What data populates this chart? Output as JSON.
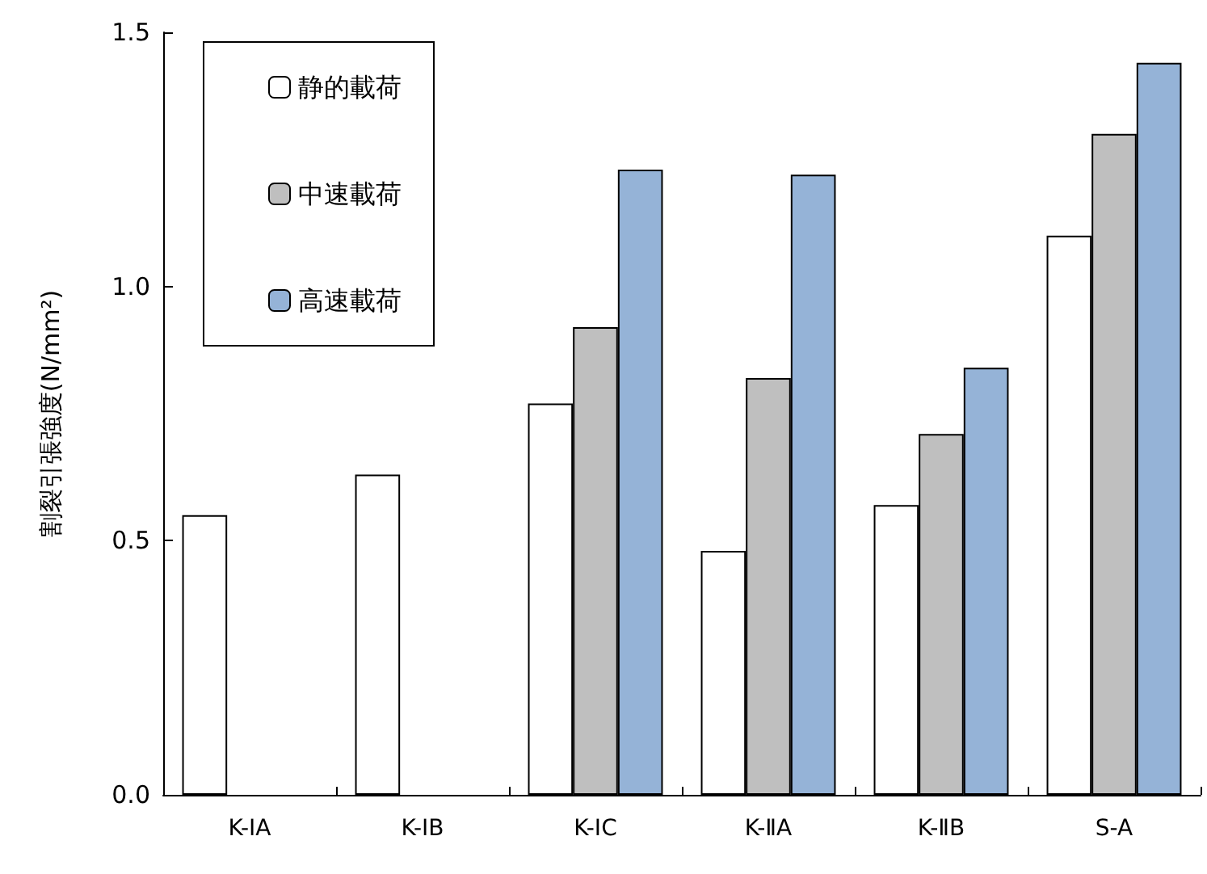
{
  "chart_data": {
    "type": "bar",
    "ylabel": "割裂引張強度(N/mm²)",
    "categories": [
      "K-ⅠA",
      "K-ⅠB",
      "K-ⅠC",
      "K-ⅡA",
      "K-ⅡB",
      "S-A"
    ],
    "series": [
      {
        "name": "静的載荷",
        "color": "#ffffff",
        "values": [
          0.55,
          0.63,
          0.77,
          0.48,
          0.57,
          1.1
        ]
      },
      {
        "name": "中速載荷",
        "color": "#bfbfbf",
        "values": [
          null,
          null,
          0.92,
          0.82,
          0.71,
          1.3
        ]
      },
      {
        "name": "高速載荷",
        "color": "#95b3d7",
        "values": [
          null,
          null,
          1.23,
          1.22,
          0.84,
          1.44
        ]
      }
    ],
    "ylim": [
      0,
      1.5
    ],
    "yticks": [
      {
        "value": 0,
        "label": "0.0"
      },
      {
        "value": 0.5,
        "label": "0.5"
      },
      {
        "value": 1,
        "label": "1.0"
      },
      {
        "value": 1.5,
        "label": "1.5"
      }
    ],
    "grid": false,
    "legend": "top left"
  }
}
